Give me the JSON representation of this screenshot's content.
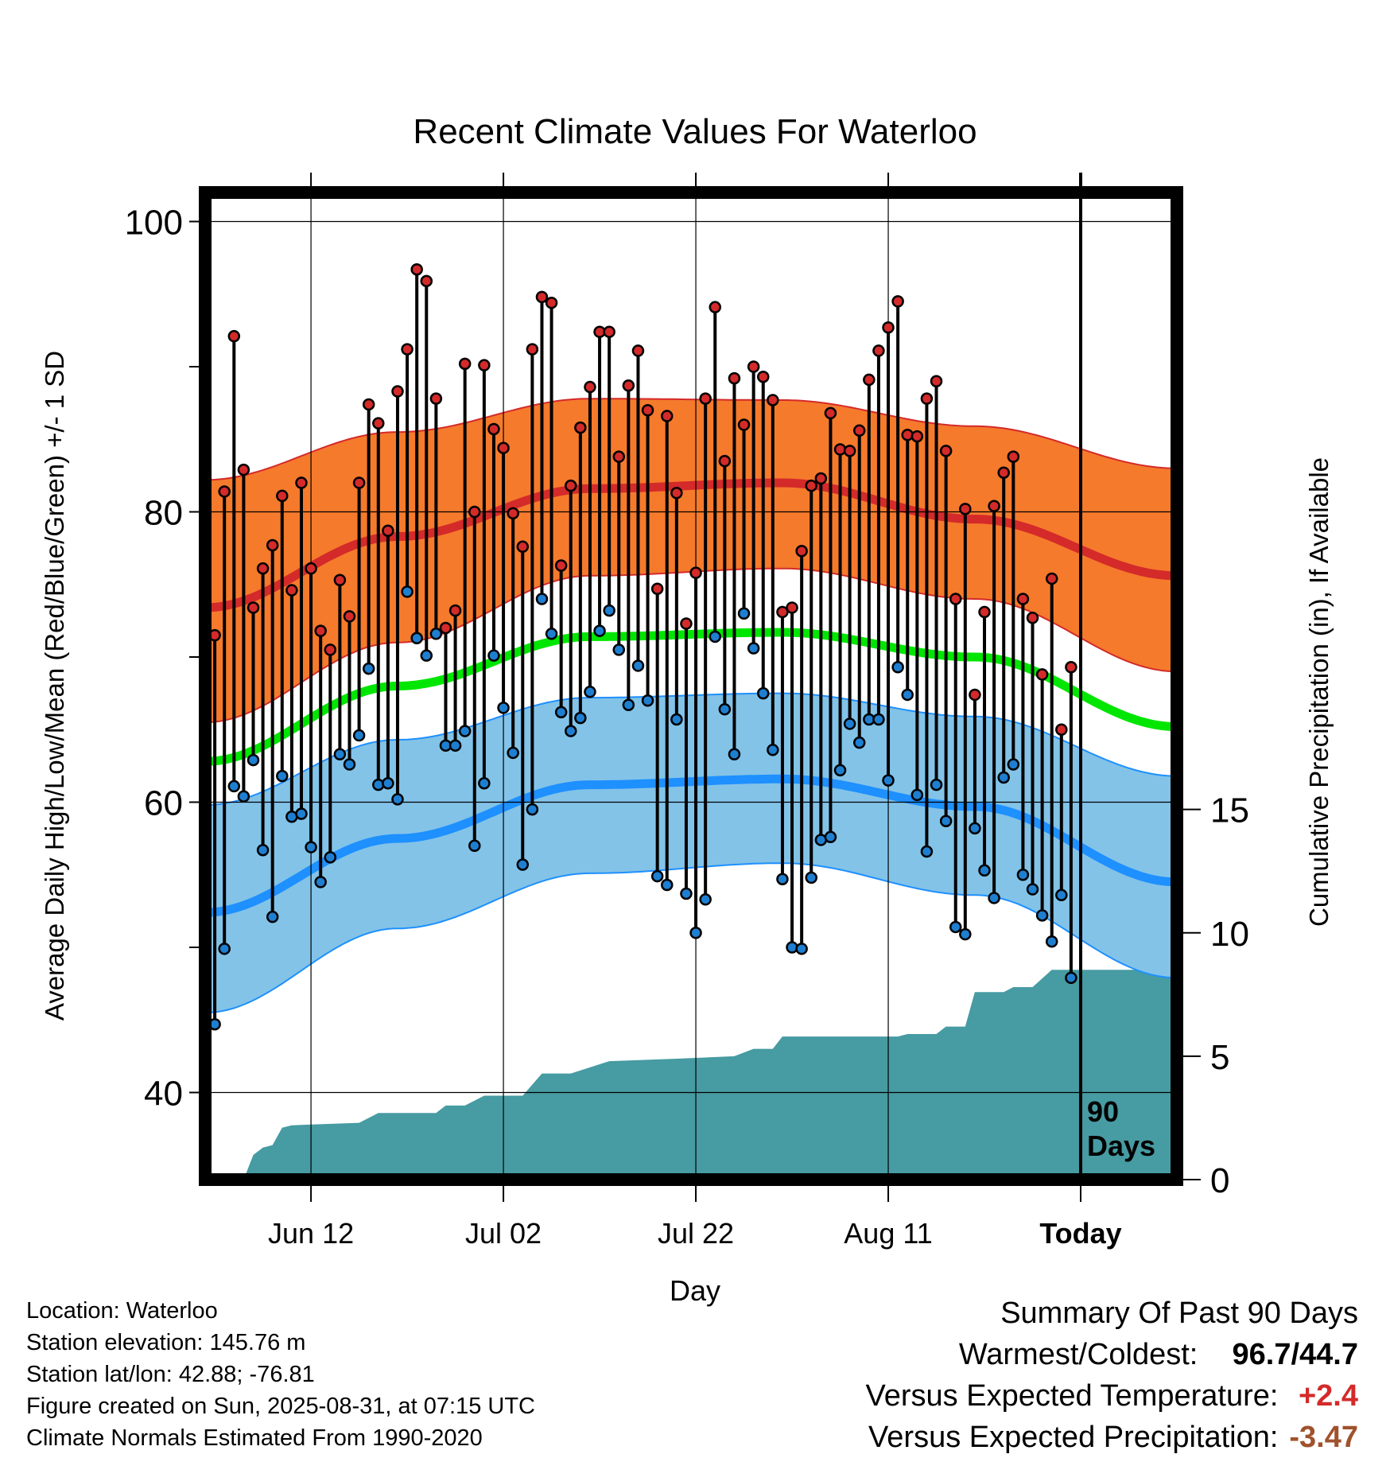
{
  "chart_data": {
    "type": "line",
    "title": "Recent Climate Values For Waterloo",
    "xlabel": "Day",
    "ylabel": "Average Daily High/Low/Mean (Red/Blue/Green) +/- 1 SD",
    "y2label": "Cumulative Precipitation (in), If Available",
    "ylim": [
      34,
      102
    ],
    "y_ticks": [
      40,
      60,
      80,
      100
    ],
    "y2lim": [
      0,
      40
    ],
    "y2_ticks": [
      0,
      5,
      10,
      15
    ],
    "x_ticks": [
      "Jun 12",
      "Jul 02",
      "Jul 22",
      "Aug 11",
      "Today"
    ],
    "x_tick_days": [
      11,
      31,
      51,
      71,
      91
    ],
    "xlim": [
      0,
      101
    ],
    "today_marker": {
      "label_line1": "90",
      "label_line2": "Days"
    },
    "normals": {
      "high_mean": [
        [
          0,
          73.4
        ],
        [
          20,
          78.3
        ],
        [
          40,
          81.6
        ],
        [
          60,
          82.0
        ],
        [
          80,
          79.5
        ],
        [
          101,
          75.6
        ]
      ],
      "high_sd_upper": [
        [
          0,
          82.2
        ],
        [
          20,
          85.5
        ],
        [
          40,
          87.8
        ],
        [
          60,
          87.7
        ],
        [
          80,
          85.9
        ],
        [
          101,
          83.0
        ]
      ],
      "high_sd_lower": [
        [
          0,
          65.5
        ],
        [
          20,
          71.0
        ],
        [
          40,
          75.6
        ],
        [
          60,
          76.1
        ],
        [
          80,
          74.0
        ],
        [
          101,
          69.0
        ]
      ],
      "mean": [
        [
          0,
          62.8
        ],
        [
          20,
          68.0
        ],
        [
          40,
          71.4
        ],
        [
          60,
          71.7
        ],
        [
          80,
          70.0
        ],
        [
          101,
          65.2
        ]
      ],
      "low_mean": [
        [
          0,
          52.4
        ],
        [
          20,
          57.5
        ],
        [
          40,
          61.2
        ],
        [
          60,
          61.6
        ],
        [
          80,
          59.7
        ],
        [
          101,
          54.5
        ]
      ],
      "low_sd_upper": [
        [
          0,
          59.8
        ],
        [
          20,
          64.3
        ],
        [
          40,
          67.2
        ],
        [
          60,
          67.5
        ],
        [
          80,
          65.9
        ],
        [
          101,
          61.8
        ]
      ],
      "low_sd_lower": [
        [
          0,
          45.5
        ],
        [
          20,
          51.3
        ],
        [
          40,
          55.1
        ],
        [
          60,
          55.8
        ],
        [
          80,
          53.6
        ],
        [
          101,
          47.9
        ]
      ]
    },
    "days": [
      {
        "x": 1,
        "high": 71.5,
        "low": 44.7
      },
      {
        "x": 2,
        "high": 81.4,
        "low": 49.9
      },
      {
        "x": 3,
        "high": 92.1,
        "low": 61.1
      },
      {
        "x": 4,
        "high": 82.9,
        "low": 60.4
      },
      {
        "x": 5,
        "high": 73.4,
        "low": 62.9
      },
      {
        "x": 6,
        "high": 76.1,
        "low": 56.7
      },
      {
        "x": 7,
        "high": 77.7,
        "low": 52.1
      },
      {
        "x": 8,
        "high": 81.1,
        "low": 61.8
      },
      {
        "x": 9,
        "high": 74.6,
        "low": 59.0
      },
      {
        "x": 10,
        "high": 82.0,
        "low": 59.2
      },
      {
        "x": 11,
        "high": 76.1,
        "low": 56.9
      },
      {
        "x": 12,
        "high": 71.8,
        "low": 54.5
      },
      {
        "x": 13,
        "high": 70.5,
        "low": 56.2
      },
      {
        "x": 14,
        "high": 75.3,
        "low": 63.3
      },
      {
        "x": 15,
        "high": 72.8,
        "low": 62.6
      },
      {
        "x": 16,
        "high": 82.0,
        "low": 64.6
      },
      {
        "x": 17,
        "high": 87.4,
        "low": 69.2
      },
      {
        "x": 18,
        "high": 86.1,
        "low": 61.2
      },
      {
        "x": 19,
        "high": 78.7,
        "low": 61.3
      },
      {
        "x": 20,
        "high": 88.3,
        "low": 60.2
      },
      {
        "x": 21,
        "high": 91.2,
        "low": 74.5
      },
      {
        "x": 22,
        "high": 96.7,
        "low": 71.3
      },
      {
        "x": 23,
        "high": 95.9,
        "low": 70.1
      },
      {
        "x": 24,
        "high": 87.8,
        "low": 71.6
      },
      {
        "x": 25,
        "high": 72.0,
        "low": 63.9
      },
      {
        "x": 26,
        "high": 73.2,
        "low": 63.9
      },
      {
        "x": 27,
        "high": 90.2,
        "low": 64.9
      },
      {
        "x": 28,
        "high": 80.0,
        "low": 57.0
      },
      {
        "x": 29,
        "high": 90.1,
        "low": 61.3
      },
      {
        "x": 30,
        "high": 85.7,
        "low": 70.1
      },
      {
        "x": 31,
        "high": 84.4,
        "low": 66.5
      },
      {
        "x": 32,
        "high": 79.9,
        "low": 63.4
      },
      {
        "x": 33,
        "high": 77.6,
        "low": 55.7
      },
      {
        "x": 34,
        "high": 91.2,
        "low": 59.5
      },
      {
        "x": 35,
        "high": 94.8,
        "low": 74.0
      },
      {
        "x": 36,
        "high": 94.4,
        "low": 71.6
      },
      {
        "x": 37,
        "high": 76.3,
        "low": 66.2
      },
      {
        "x": 38,
        "high": 81.8,
        "low": 64.9
      },
      {
        "x": 39,
        "high": 85.8,
        "low": 65.8
      },
      {
        "x": 40,
        "high": 88.6,
        "low": 67.6
      },
      {
        "x": 41,
        "high": 92.4,
        "low": 71.8
      },
      {
        "x": 42,
        "high": 92.4,
        "low": 73.2
      },
      {
        "x": 43,
        "high": 83.8,
        "low": 70.5
      },
      {
        "x": 44,
        "high": 88.7,
        "low": 66.7
      },
      {
        "x": 45,
        "high": 91.1,
        "low": 69.4
      },
      {
        "x": 46,
        "high": 87.0,
        "low": 67.0
      },
      {
        "x": 47,
        "high": 74.7,
        "low": 54.9
      },
      {
        "x": 48,
        "high": 86.6,
        "low": 54.3
      },
      {
        "x": 49,
        "high": 81.3,
        "low": 65.7
      },
      {
        "x": 50,
        "high": 72.3,
        "low": 53.7
      },
      {
        "x": 51,
        "high": 75.8,
        "low": 51.0
      },
      {
        "x": 52,
        "high": 87.8,
        "low": 53.3
      },
      {
        "x": 53,
        "high": 94.1,
        "low": 71.4
      },
      {
        "x": 54,
        "high": 83.5,
        "low": 66.4
      },
      {
        "x": 55,
        "high": 89.2,
        "low": 63.3
      },
      {
        "x": 56,
        "high": 86.0,
        "low": 73.0
      },
      {
        "x": 57,
        "high": 90.0,
        "low": 70.6
      },
      {
        "x": 58,
        "high": 89.3,
        "low": 67.5
      },
      {
        "x": 59,
        "high": 87.7,
        "low": 63.6
      },
      {
        "x": 60,
        "high": 73.1,
        "low": 54.7
      },
      {
        "x": 61,
        "high": 73.4,
        "low": 50.0
      },
      {
        "x": 62,
        "high": 77.3,
        "low": 49.9
      },
      {
        "x": 63,
        "high": 81.8,
        "low": 54.8
      },
      {
        "x": 64,
        "high": 82.3,
        "low": 57.4
      },
      {
        "x": 65,
        "high": 86.8,
        "low": 57.6
      },
      {
        "x": 66,
        "high": 84.3,
        "low": 62.2
      },
      {
        "x": 67,
        "high": 84.2,
        "low": 65.4
      },
      {
        "x": 68,
        "high": 85.6,
        "low": 64.1
      },
      {
        "x": 69,
        "high": 89.1,
        "low": 65.7
      },
      {
        "x": 70,
        "high": 91.1,
        "low": 65.7
      },
      {
        "x": 71,
        "high": 92.7,
        "low": 61.5
      },
      {
        "x": 72,
        "high": 94.5,
        "low": 69.3
      },
      {
        "x": 73,
        "high": 85.3,
        "low": 67.4
      },
      {
        "x": 74,
        "high": 85.2,
        "low": 60.5
      },
      {
        "x": 75,
        "high": 87.8,
        "low": 56.6
      },
      {
        "x": 76,
        "high": 89.0,
        "low": 61.2
      },
      {
        "x": 77,
        "high": 84.2,
        "low": 58.7
      },
      {
        "x": 78,
        "high": 74.0,
        "low": 51.4
      },
      {
        "x": 79,
        "high": 80.2,
        "low": 50.9
      },
      {
        "x": 80,
        "high": 67.4,
        "low": 58.2
      },
      {
        "x": 81,
        "high": 73.1,
        "low": 55.3
      },
      {
        "x": 82,
        "high": 80.4,
        "low": 53.4
      },
      {
        "x": 83,
        "high": 82.7,
        "low": 61.7
      },
      {
        "x": 84,
        "high": 83.8,
        "low": 62.6
      },
      {
        "x": 85,
        "high": 74.0,
        "low": 55.0
      },
      {
        "x": 86,
        "high": 72.7,
        "low": 54.0
      },
      {
        "x": 87,
        "high": 68.8,
        "low": 52.2
      },
      {
        "x": 88,
        "high": 75.4,
        "low": 50.4
      },
      {
        "x": 89,
        "high": 65.0,
        "low": 53.6
      },
      {
        "x": 90,
        "high": 69.3,
        "low": 47.9
      }
    ],
    "precip_cumulative": [
      [
        0,
        0
      ],
      [
        4,
        0
      ],
      [
        5,
        1.0
      ],
      [
        6,
        1.3
      ],
      [
        7,
        1.4
      ],
      [
        8,
        2.1
      ],
      [
        9,
        2.2
      ],
      [
        16,
        2.3
      ],
      [
        18,
        2.7
      ],
      [
        24,
        2.7
      ],
      [
        25,
        3.0
      ],
      [
        27,
        3.0
      ],
      [
        29,
        3.4
      ],
      [
        33,
        3.4
      ],
      [
        35,
        4.3
      ],
      [
        38,
        4.3
      ],
      [
        42,
        4.8
      ],
      [
        49,
        4.9
      ],
      [
        55,
        5.0
      ],
      [
        57,
        5.3
      ],
      [
        59,
        5.3
      ],
      [
        60,
        5.8
      ],
      [
        72,
        5.8
      ],
      [
        73,
        5.9
      ],
      [
        76,
        5.9
      ],
      [
        77,
        6.2
      ],
      [
        79,
        6.2
      ],
      [
        80,
        7.6
      ],
      [
        83,
        7.6
      ],
      [
        84,
        7.8
      ],
      [
        86,
        7.8
      ],
      [
        88,
        8.5
      ],
      [
        101,
        8.5
      ]
    ],
    "colors": {
      "high_band": "#f57a2c",
      "high_line": "#d42a2a",
      "mean_line": "#00e600",
      "low_band": "#83c3e8",
      "low_line": "#1e90ff",
      "precip": "#479ba2",
      "high_marker": "#d42a2a",
      "low_marker": "#1e7fd1"
    }
  },
  "station": {
    "location": "Location: Waterloo",
    "elevation": "Station elevation: 145.76 m",
    "latlon": "Station lat/lon: 42.88; -76.81",
    "created": "Figure created on Sun, 2025-08-31, at 07:15 UTC",
    "normals": "Climate Normals Estimated From 1990-2020"
  },
  "summary": {
    "heading": "Summary Of Past 90 Days",
    "warm_cold_label": "Warmest/Coldest:",
    "warm_value": "96.7",
    "slash": "/",
    "cold_value": "44.7",
    "temp_label": "Versus Expected Temperature:",
    "temp_value": "+2.4",
    "temp_color": "#d42a2a",
    "precip_label": "Versus Expected Precipitation:",
    "precip_value": "-3.47",
    "precip_color": "#a0522d"
  }
}
